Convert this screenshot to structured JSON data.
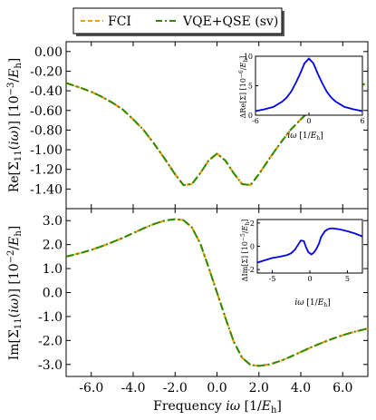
{
  "legend": {
    "placement": "top-center",
    "entries": [
      {
        "label": "FCI",
        "color": "#ff9900",
        "style": "dashed"
      },
      {
        "label": "VQE+QSE (sv)",
        "color": "#2a8a00",
        "style": "dashdot"
      }
    ]
  },
  "xlabel": "Frequency iω [1/E_h]",
  "chart_data": [
    {
      "type": "line",
      "ylabel": "Re[Σ11(iω)] [10^-3/E_h]",
      "xlim": [
        -7.2,
        7.2
      ],
      "ylim": [
        -1.6,
        0.1
      ],
      "xticks": [
        -6.0,
        -4.0,
        -2.0,
        0.0,
        2.0,
        4.0,
        6.0
      ],
      "yticks": [
        0.0,
        -0.2,
        -0.4,
        -0.6,
        -0.8,
        -1.0,
        -1.2,
        -1.4
      ],
      "yticklabels": [
        "0.00",
        "-0.20",
        "-0.40",
        "-0.60",
        "-0.80",
        "-1.00",
        "-1.20",
        "-1.40"
      ],
      "series": [
        {
          "name": "FCI",
          "x": [
            -7.2,
            -6.5,
            -6,
            -5.5,
            -5,
            -4.5,
            -4,
            -3.5,
            -3,
            -2.5,
            -2,
            -1.6,
            -1.2,
            -0.8,
            -0.4,
            0,
            0.4,
            0.8,
            1.2,
            1.6,
            2,
            2.5,
            3,
            3.5,
            4,
            4.5,
            5,
            5.5,
            6,
            6.5,
            7.2
          ],
          "y": [
            -0.32,
            -0.37,
            -0.41,
            -0.46,
            -0.52,
            -0.59,
            -0.69,
            -0.8,
            -0.94,
            -1.09,
            -1.25,
            -1.36,
            -1.35,
            -1.24,
            -1.11,
            -1.04,
            -1.11,
            -1.24,
            -1.35,
            -1.36,
            -1.25,
            -1.09,
            -0.94,
            -0.8,
            -0.69,
            -0.59,
            -0.52,
            -0.46,
            -0.41,
            -0.37,
            -0.32
          ]
        },
        {
          "name": "VQE+QSE (sv)",
          "x": [
            -7.2,
            -6.5,
            -6,
            -5.5,
            -5,
            -4.5,
            -4,
            -3.5,
            -3,
            -2.5,
            -2,
            -1.6,
            -1.2,
            -0.8,
            -0.4,
            0,
            0.4,
            0.8,
            1.2,
            1.6,
            2,
            2.5,
            3,
            3.5,
            4,
            4.5,
            5,
            5.5,
            6,
            6.5,
            7.2
          ],
          "y": [
            -0.32,
            -0.37,
            -0.41,
            -0.46,
            -0.52,
            -0.59,
            -0.69,
            -0.8,
            -0.94,
            -1.09,
            -1.25,
            -1.36,
            -1.35,
            -1.24,
            -1.11,
            -1.04,
            -1.11,
            -1.24,
            -1.35,
            -1.36,
            -1.25,
            -1.09,
            -0.94,
            -0.8,
            -0.69,
            -0.59,
            -0.52,
            -0.46,
            -0.41,
            -0.37,
            -0.32
          ]
        }
      ],
      "inset": {
        "ylabel": "ΔRe[Σ] [10^-6/E_h]",
        "xlabel": "iω [1/E_h]",
        "xlim": [
          -6,
          6
        ],
        "ylim": [
          0,
          10
        ],
        "xticks": [
          -6,
          0,
          6
        ],
        "yticks": [
          0,
          5,
          10
        ],
        "color": "#0000ee",
        "x": [
          -6,
          -5,
          -4,
          -3,
          -2.5,
          -2,
          -1.5,
          -1,
          -0.5,
          0,
          0.5,
          1,
          1.5,
          2,
          2.5,
          3,
          4,
          5,
          6
        ],
        "y": [
          0.7,
          1.0,
          1.4,
          2.3,
          3.0,
          4.0,
          5.4,
          7.0,
          8.8,
          9.6,
          8.8,
          7.0,
          5.4,
          4.0,
          3.0,
          2.3,
          1.4,
          1.0,
          0.7
        ]
      }
    },
    {
      "type": "line",
      "ylabel": "Im[Σ11(iω)] [10^-2/E_h]",
      "xlim": [
        -7.2,
        7.2
      ],
      "ylim": [
        -3.5,
        3.5
      ],
      "xticks": [
        -6.0,
        -4.0,
        -2.0,
        0.0,
        2.0,
        4.0,
        6.0
      ],
      "xticklabels": [
        "-6.0",
        "-4.0",
        "-2.0",
        "0.0",
        "2.0",
        "4.0",
        "6.0"
      ],
      "yticks": [
        3.0,
        2.0,
        1.0,
        0.0,
        -1.0,
        -2.0,
        -3.0
      ],
      "yticklabels": [
        "3.0",
        "2.0",
        "1.0",
        "0.0",
        "-1.0",
        "-2.0",
        "-3.0"
      ],
      "series": [
        {
          "name": "FCI",
          "x": [
            -7.2,
            -6.5,
            -6,
            -5.5,
            -5,
            -4.5,
            -4,
            -3.5,
            -3,
            -2.5,
            -2,
            -1.6,
            -1.2,
            -0.8,
            -0.4,
            0,
            0.4,
            0.8,
            1.2,
            1.6,
            2,
            2.5,
            3,
            3.5,
            4,
            4.5,
            5,
            5.5,
            6,
            6.5,
            7.2
          ],
          "y": [
            1.5,
            1.65,
            1.78,
            1.93,
            2.1,
            2.28,
            2.48,
            2.68,
            2.86,
            3.0,
            3.06,
            3.02,
            2.72,
            2.05,
            1.05,
            0.0,
            -1.05,
            -2.05,
            -2.72,
            -3.02,
            -3.06,
            -3.0,
            -2.86,
            -2.68,
            -2.48,
            -2.28,
            -2.1,
            -1.93,
            -1.78,
            -1.65,
            -1.5
          ]
        },
        {
          "name": "VQE+QSE (sv)",
          "x": [
            -7.2,
            -6.5,
            -6,
            -5.5,
            -5,
            -4.5,
            -4,
            -3.5,
            -3,
            -2.5,
            -2,
            -1.6,
            -1.2,
            -0.8,
            -0.4,
            0,
            0.4,
            0.8,
            1.2,
            1.6,
            2,
            2.5,
            3,
            3.5,
            4,
            4.5,
            5,
            5.5,
            6,
            6.5,
            7.2
          ],
          "y": [
            1.5,
            1.65,
            1.78,
            1.93,
            2.1,
            2.28,
            2.48,
            2.68,
            2.86,
            3.0,
            3.06,
            3.02,
            2.72,
            2.05,
            1.05,
            0.0,
            -1.05,
            -2.05,
            -2.72,
            -3.02,
            -3.06,
            -3.0,
            -2.86,
            -2.68,
            -2.48,
            -2.28,
            -2.1,
            -1.93,
            -1.78,
            -1.65,
            -1.5
          ]
        }
      ],
      "inset": {
        "ylabel": "ΔIm[Σ] [10^-5/E_h]",
        "xlabel": "iω [1/E_h]",
        "xlim": [
          -7,
          7
        ],
        "ylim": [
          -2.3,
          2.3
        ],
        "xticks": [
          -5,
          0,
          5
        ],
        "yticks": [
          -2,
          0,
          2
        ],
        "color": "#0000ee",
        "x": [
          -7,
          -6,
          -5,
          -4,
          -3,
          -2.5,
          -2,
          -1.5,
          -1.2,
          -0.8,
          -0.5,
          -0.2,
          0.2,
          0.5,
          0.8,
          1.2,
          1.5,
          2,
          2.5,
          3,
          3.5,
          4,
          5,
          6,
          7
        ],
        "y": [
          -1.4,
          -1.2,
          -1.0,
          -0.9,
          -0.75,
          -0.6,
          -0.3,
          0.2,
          0.5,
          0.45,
          -0.1,
          -0.5,
          -0.7,
          -0.55,
          -0.3,
          0.2,
          0.8,
          1.3,
          1.5,
          1.55,
          1.5,
          1.45,
          1.3,
          1.1,
          0.85
        ]
      }
    }
  ]
}
